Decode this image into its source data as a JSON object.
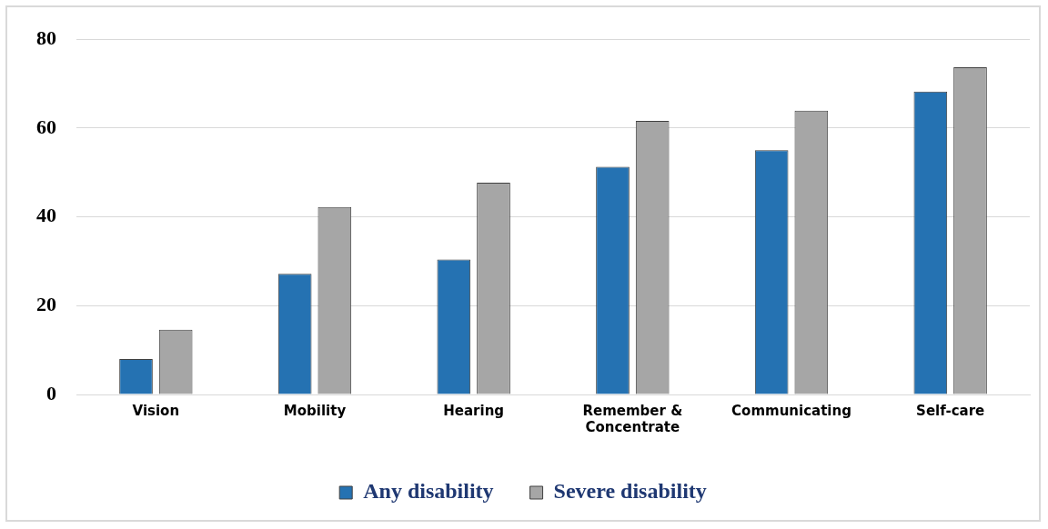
{
  "chart_data": {
    "type": "bar",
    "categories": [
      "Vision",
      "Mobility",
      "Hearing",
      "Remember & Concentrate",
      "Communicating",
      "Self-care"
    ],
    "series": [
      {
        "name": "Any disability",
        "color": "#2572b2",
        "values": [
          8.0,
          27.2,
          30.4,
          51.3,
          55.0,
          68.2
        ]
      },
      {
        "name": "Severe disability",
        "color": "#a6a6a6",
        "values": [
          14.6,
          42.2,
          47.7,
          61.6,
          63.9,
          73.7
        ]
      }
    ],
    "ylim": [
      0,
      80
    ],
    "yticks": [
      0,
      20,
      40,
      60,
      80
    ],
    "grid": "y",
    "legend": "bottom"
  }
}
